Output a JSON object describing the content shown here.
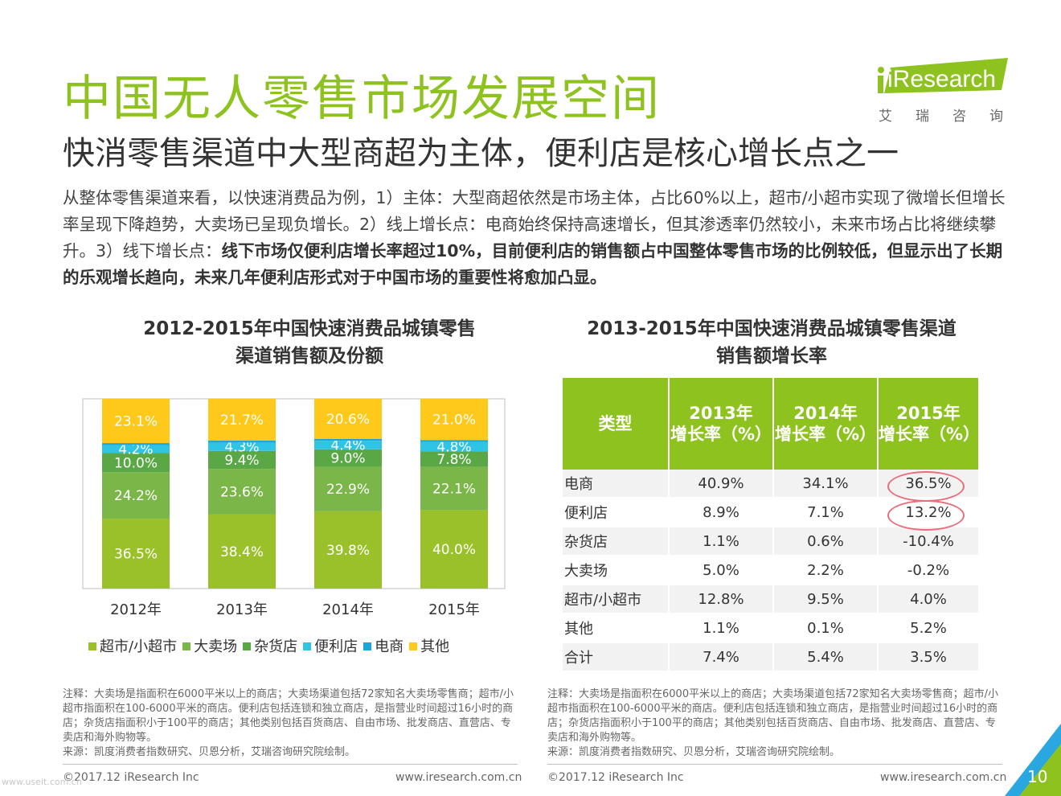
{
  "header": {
    "title": "中国无人零售市场发展空间",
    "subtitle": "快消零售渠道中大型商超为主体，便利店是核心增长点之一",
    "logo_text": "iResearch",
    "logo_cn": "艾瑞咨询"
  },
  "intro": {
    "normal": "从整体零售渠道来看，以快速消费品为例，1）主体：大型商超依然是市场主体，占比60%以上，超市/小超市实现了微增长但增长率呈现下降趋势，大卖场已呈现负增长。2）线上增长点：电商始终保持高速增长，但其渗透率仍然较小，未来市场占比将继续攀升。3）线下增长点：",
    "bold": "线下市场仅便利店增长率超过10%，目前便利店的销售额占中国整体零售市场的比例较低，但显示出了长期的乐观增长趋向，未来几年便利店形式对于中国市场的重要性将愈加凸显。"
  },
  "left_chart": {
    "title_line1": "2012-2015年中国快速消费品城镇零售",
    "title_line2": "渠道销售额及份额"
  },
  "chart_data": {
    "type": "bar",
    "stacked": true,
    "percent": true,
    "categories": [
      "2012年",
      "2013年",
      "2014年",
      "2015年"
    ],
    "series": [
      {
        "name": "超市/小超市",
        "color": "#9bc12a",
        "values": [
          36.5,
          38.4,
          39.8,
          40.0
        ]
      },
      {
        "name": "大卖场",
        "color": "#7ab648",
        "values": [
          24.2,
          23.6,
          22.9,
          22.1
        ]
      },
      {
        "name": "杂货店",
        "color": "#5aa845",
        "values": [
          10.0,
          9.4,
          9.0,
          7.8
        ]
      },
      {
        "name": "便利店",
        "color": "#2ec4e6",
        "values": [
          4.2,
          4.3,
          4.4,
          4.8
        ]
      },
      {
        "name": "电商",
        "color": "#1aa6d8",
        "values": [
          1.0,
          1.0,
          1.0,
          1.0
        ]
      },
      {
        "name": "其他",
        "color": "#ffc91c",
        "values": [
          23.1,
          21.7,
          20.6,
          21.0
        ]
      }
    ],
    "labels": [
      [
        "36.5%",
        "24.2%",
        "10.0%",
        "4.2%",
        "",
        "23.1%"
      ],
      [
        "38.4%",
        "23.6%",
        "9.4%",
        "4.3%",
        "",
        "21.7%"
      ],
      [
        "39.8%",
        "22.9%",
        "9.0%",
        "4.4%",
        "",
        "20.6%"
      ],
      [
        "40.0%",
        "22.1%",
        "7.8%",
        "4.8%",
        "",
        "21.0%"
      ]
    ],
    "legend_position": "bottom"
  },
  "right_table": {
    "title_line1": "2013-2015年中国快速消费品城镇零售渠道",
    "title_line2": "销售额增长率",
    "headers": [
      {
        "l1": "类型",
        "l2": ""
      },
      {
        "l1": "2013年",
        "l2": "增长率（%）"
      },
      {
        "l1": "2014年",
        "l2": "增长率（%）"
      },
      {
        "l1": "2015年",
        "l2": "增长率（%）"
      }
    ],
    "rows": [
      [
        "电商",
        "40.9%",
        "34.1%",
        "36.5%"
      ],
      [
        "便利店",
        "8.9%",
        "7.1%",
        "13.2%"
      ],
      [
        "杂货店",
        "1.1%",
        "0.6%",
        "-10.4%"
      ],
      [
        "大卖场",
        "5.0%",
        "2.2%",
        "-0.2%"
      ],
      [
        "超市/小超市",
        "12.8%",
        "9.5%",
        "4.0%"
      ],
      [
        "其他",
        "1.1%",
        "0.1%",
        "5.2%"
      ],
      [
        "合计",
        "7.4%",
        "5.4%",
        "3.5%"
      ]
    ]
  },
  "notes": {
    "note": "注释：大卖场是指面积在6000平米以上的商店；大卖场渠道包括72家知名大卖场零售商；超市/小超市指面积在100-6000平米的商店。便利店包括连锁和独立商店，是指营业时间超过16小时的商店；杂货店指面积小于100平的商店；其他类别包括百货商店、自由市场、批发商店、直营店、专卖店和海外购物等。",
    "source": "来源：凯度消费者指数研究、贝恩分析，艾瑞咨询研究院绘制。"
  },
  "footer": {
    "copyright": "©2017.12 iResearch Inc",
    "website": "www.iresearch.com.cn",
    "page": "10",
    "watermark": "www.useit.com.cn"
  },
  "colors": {
    "brand_green": "#8dc21f",
    "circle_red": "#e96d7b",
    "corner_blue": "#2aa7e0"
  }
}
